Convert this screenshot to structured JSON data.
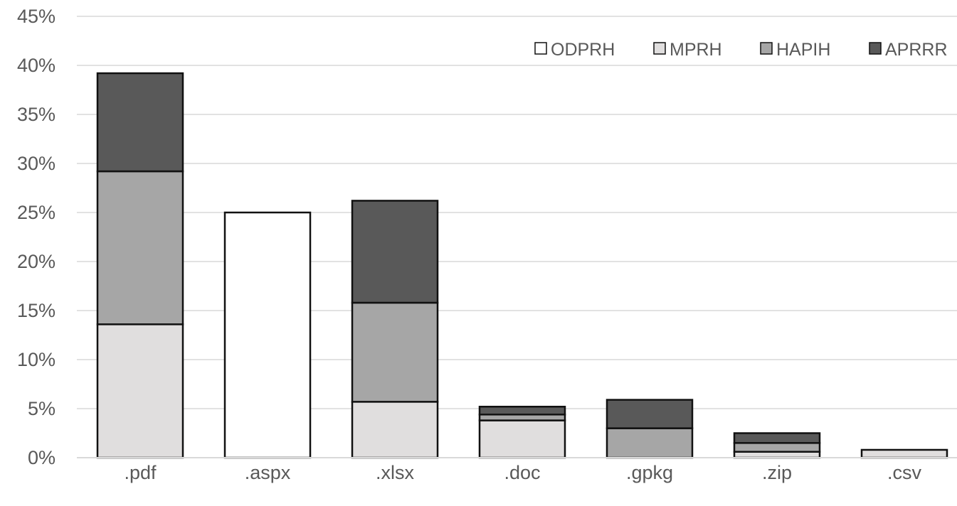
{
  "chart_data": {
    "type": "bar",
    "stacked": true,
    "title": "",
    "xlabel": "",
    "ylabel": "",
    "categories": [
      ".pdf",
      ".aspx",
      ".xlsx",
      ".doc",
      ".gpkg",
      ".zip",
      ".csv"
    ],
    "series": [
      {
        "name": "ODPRH",
        "color": "#ffffff",
        "values": [
          0,
          25.0,
          0,
          0,
          0,
          0,
          0
        ]
      },
      {
        "name": "MPRH",
        "color": "#e0dede",
        "values": [
          13.6,
          0,
          5.7,
          3.8,
          0,
          0.6,
          0.8
        ]
      },
      {
        "name": "HAPIH",
        "color": "#a6a6a6",
        "values": [
          15.6,
          0,
          10.1,
          0.6,
          3.0,
          0.9,
          0
        ]
      },
      {
        "name": "APRRR",
        "color": "#595959",
        "values": [
          10.0,
          0,
          10.4,
          0.8,
          2.9,
          1.0,
          0
        ]
      }
    ],
    "ylim": [
      0,
      45
    ],
    "y_ticks": [
      0,
      5,
      10,
      15,
      20,
      25,
      30,
      35,
      40,
      45
    ],
    "y_tick_format": "percent",
    "grid": true,
    "legend_position": "top-right",
    "colors": {
      "grid": "#d9d9d9",
      "bar_stroke": "#111111",
      "text": "#595959"
    }
  }
}
